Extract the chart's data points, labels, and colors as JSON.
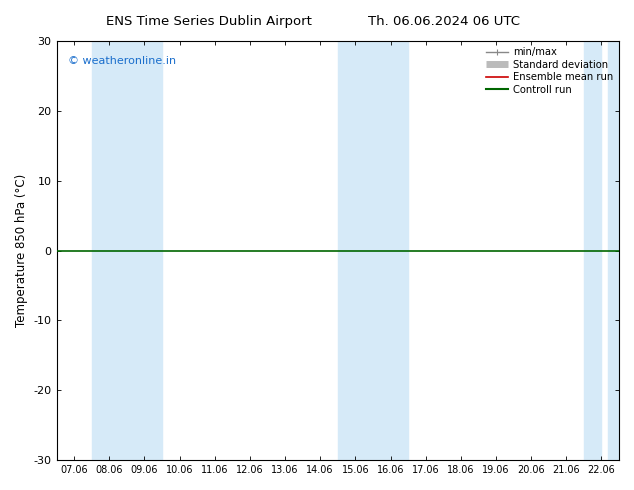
{
  "title_left": "ENS Time Series Dublin Airport",
  "title_right": "Th. 06.06.2024 06 UTC",
  "ylabel": "Temperature 850 hPa (°C)",
  "ylim": [
    -30,
    30
  ],
  "yticks": [
    -30,
    -20,
    -10,
    0,
    10,
    20,
    30
  ],
  "xtick_labels": [
    "07.06",
    "08.06",
    "09.06",
    "10.06",
    "11.06",
    "12.06",
    "13.06",
    "14.06",
    "15.06",
    "16.06",
    "17.06",
    "18.06",
    "19.06",
    "20.06",
    "21.06",
    "22.06"
  ],
  "watermark": "© weatheronline.in",
  "watermark_color": "#1a6ecc",
  "background_color": "#ffffff",
  "plot_bg_color": "#ffffff",
  "shaded_bands": [
    {
      "xstart": 1,
      "xend": 3,
      "color": "#d6eaf8"
    },
    {
      "xstart": 8,
      "xend": 10,
      "color": "#d6eaf8"
    },
    {
      "xstart": 15,
      "xend": 15.5,
      "color": "#d6eaf8"
    }
  ],
  "hline_y": 0,
  "hline_color": "#006600",
  "hline_lw": 1.2,
  "legend_items": [
    {
      "label": "min/max",
      "color": "#888888",
      "lw": 1.0
    },
    {
      "label": "Standard deviation",
      "color": "#bbbbbb",
      "lw": 5
    },
    {
      "label": "Ensemble mean run",
      "color": "#cc0000",
      "lw": 1.2
    },
    {
      "label": "Controll run",
      "color": "#006600",
      "lw": 1.5
    }
  ],
  "tick_color": "#000000",
  "spine_color": "#000000",
  "font_family": "DejaVu Sans"
}
